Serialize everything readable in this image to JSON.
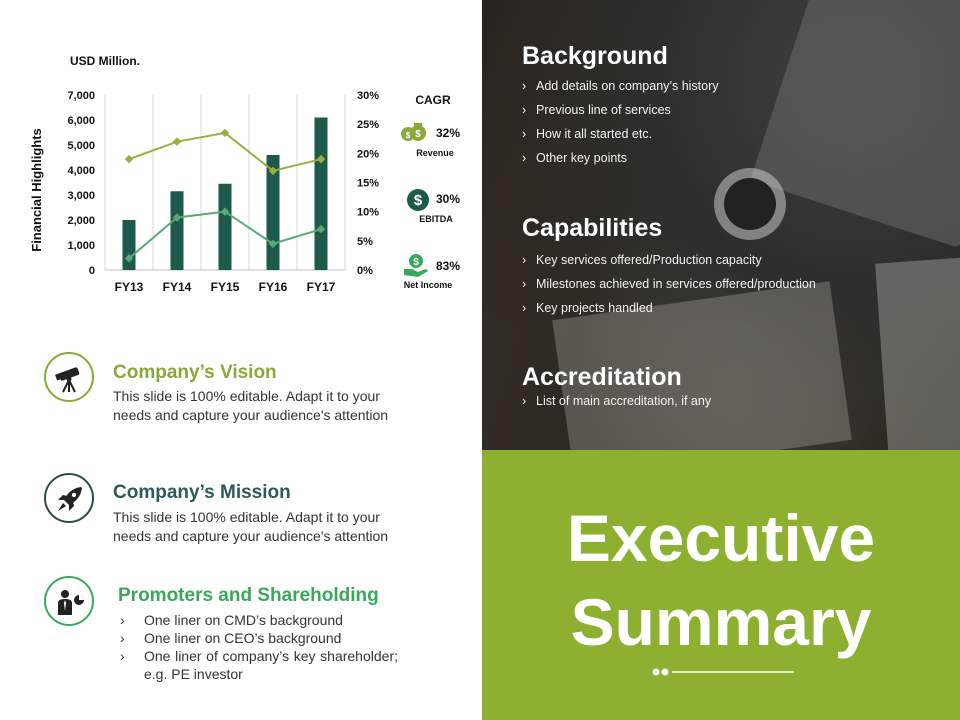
{
  "chart": {
    "unit_label": "USD Million.",
    "ylabel": "Financial Highlights"
  },
  "chart_data": {
    "type": "bar",
    "categories": [
      "FY13",
      "FY14",
      "FY15",
      "FY16",
      "FY17"
    ],
    "y_left_ticks": [
      "0",
      "1,000",
      "2,000",
      "3,000",
      "4,000",
      "5,000",
      "6,000",
      "7,000"
    ],
    "y_right_ticks": [
      "0%",
      "5%",
      "10%",
      "15%",
      "20%",
      "25%",
      "30%"
    ],
    "ylim": [
      0,
      7000
    ],
    "y2lim": [
      0,
      30
    ],
    "series": [
      {
        "type": "bar",
        "axis": "left",
        "values": [
          2000,
          3150,
          3450,
          4600,
          6100
        ],
        "color": "#1e5a4a"
      },
      {
        "type": "line",
        "axis": "right",
        "values": [
          19,
          22,
          23.5,
          17,
          19
        ],
        "color": "#9aad3e"
      },
      {
        "type": "line",
        "axis": "right",
        "values": [
          2,
          9,
          10,
          4.5,
          7
        ],
        "color": "#5aa87a"
      }
    ],
    "grid": "vertical"
  },
  "cagr": {
    "title": "CAGR",
    "items": [
      {
        "value": "32%",
        "label": "Revenue",
        "icon": "money-bag-icon",
        "color": "#8aa83a"
      },
      {
        "value": "30%",
        "label": "EBITDA",
        "icon": "dollar-icon",
        "color": "#1e5a4a"
      },
      {
        "value": "83%",
        "label": "Net Income",
        "icon": "money-hand-icon",
        "color": "#3aa85a"
      }
    ]
  },
  "vision": {
    "title": "Company’s Vision",
    "text": "This slide is 100% editable. Adapt it to your needs and capture your audience's attention",
    "color": "#8aa83a"
  },
  "mission": {
    "title": "Company’s Mission",
    "text": "This slide is 100% editable. Adapt it to your needs and capture your audience's attention",
    "color": "#2d5a5a"
  },
  "promoters": {
    "title": "Promoters and Shareholding",
    "items": [
      "One liner on CMD’s background",
      "One liner on CEO’s background",
      "One liner of company’s key shareholder; e.g. PE investor"
    ],
    "color": "#3aa85a"
  },
  "background": {
    "title": "Background",
    "items": [
      "Add details on company’s history",
      "Previous line of services",
      "How it all started etc.",
      "Other key points"
    ]
  },
  "capabilities": {
    "title": "Capabilities",
    "items": [
      "Key services offered/Production capacity",
      "Milestones achieved in services offered/production",
      "Key projects handled"
    ]
  },
  "accreditation": {
    "title": "Accreditation",
    "items": [
      "List of main accreditation, if any"
    ]
  },
  "executive": {
    "line1": "Executive",
    "line2": "Summary",
    "color": "#8db030"
  }
}
